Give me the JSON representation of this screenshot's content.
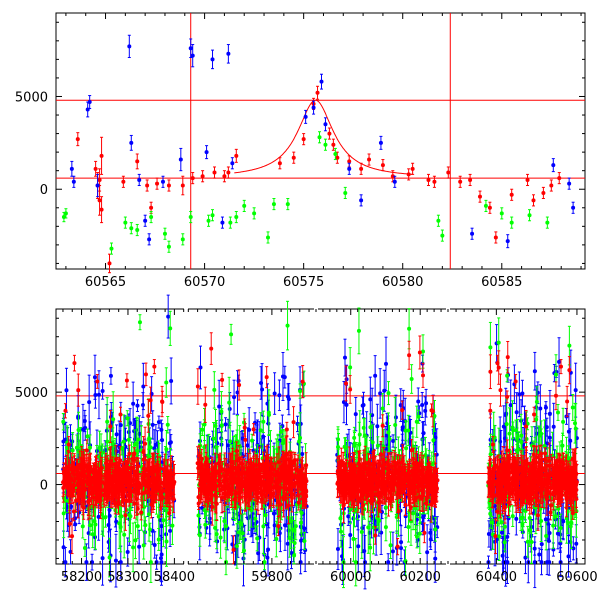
{
  "colors": {
    "red": "#ff0000",
    "green": "#00ff00",
    "blue": "#0000ff",
    "model": "#ff0000",
    "reference_lines": "#ff0000",
    "axes": "#000000"
  },
  "chart_data": [
    {
      "type": "scatter",
      "panel": "top",
      "title": "",
      "xlabel": "",
      "ylabel": "",
      "xlim": [
        60562.5,
        60589.2
      ],
      "ylim": [
        -4300,
        9500
      ],
      "x_ticks": [
        60565,
        60570,
        60575,
        60580,
        60585
      ],
      "x_tick_labels": [
        "60565",
        "60570",
        "60575",
        "60580",
        "60585"
      ],
      "y_ticks": [
        0,
        5000
      ],
      "y_tick_labels": [
        "0",
        "5000"
      ],
      "grid": false,
      "hlines": [
        600,
        4800
      ],
      "vlines": [
        60569.3,
        60582.4
      ],
      "error_bars": true,
      "model_curve": {
        "shape": "peak",
        "baseline": 600,
        "peak_x": 60575.6,
        "peak_y": 4800,
        "x_range": [
          60571.5,
          60580.5
        ]
      },
      "series": [
        {
          "color": "red",
          "points": [
            [
              60563.6,
              2700,
              350
            ],
            [
              60564.5,
              1100,
              400
            ],
            [
              60564.6,
              200,
              700
            ],
            [
              60564.7,
              -600,
              800
            ],
            [
              60564.7,
              500,
              600
            ],
            [
              60564.8,
              -1100,
              700
            ],
            [
              60564.8,
              1800,
              1000
            ],
            [
              60565.2,
              -4000,
              500
            ],
            [
              60565.9,
              400,
              300
            ],
            [
              60566.6,
              1500,
              400
            ],
            [
              60567.1,
              200,
              300
            ],
            [
              60567.3,
              -1000,
              300
            ],
            [
              60567.6,
              300,
              300
            ],
            [
              60568.2,
              200,
              300
            ],
            [
              60568.9,
              200,
              500
            ],
            [
              60569.4,
              600,
              300
            ],
            [
              60569.9,
              700,
              300
            ],
            [
              60570.5,
              900,
              300
            ],
            [
              60571.0,
              700,
              300
            ],
            [
              60571.2,
              900,
              300
            ],
            [
              60571.6,
              1800,
              350
            ],
            [
              60573.8,
              1400,
              300
            ],
            [
              60574.5,
              1700,
              300
            ],
            [
              60575.0,
              2700,
              300
            ],
            [
              60575.5,
              4600,
              300
            ],
            [
              60575.7,
              5200,
              350
            ],
            [
              60576.3,
              3000,
              300
            ],
            [
              60576.5,
              2400,
              300
            ],
            [
              60576.7,
              1700,
              300
            ],
            [
              60577.3,
              1500,
              300
            ],
            [
              60577.9,
              1100,
              300
            ],
            [
              60578.3,
              1600,
              300
            ],
            [
              60579.0,
              1300,
              300
            ],
            [
              60579.5,
              700,
              300
            ],
            [
              60580.3,
              800,
              300
            ],
            [
              60580.5,
              1100,
              300
            ],
            [
              60581.3,
              500,
              300
            ],
            [
              60581.6,
              400,
              300
            ],
            [
              60582.3,
              900,
              300
            ],
            [
              60582.9,
              400,
              300
            ],
            [
              60583.4,
              500,
              300
            ],
            [
              60583.9,
              -400,
              300
            ],
            [
              60584.4,
              -1000,
              300
            ],
            [
              60584.7,
              -2600,
              300
            ],
            [
              60585.5,
              -300,
              300
            ],
            [
              60586.3,
              500,
              300
            ],
            [
              60586.6,
              -600,
              300
            ],
            [
              60587.1,
              -200,
              300
            ],
            [
              60587.5,
              200,
              300
            ],
            [
              60587.9,
              600,
              300
            ]
          ]
        },
        {
          "color": "green",
          "points": [
            [
              60562.9,
              -1500,
              250
            ],
            [
              60563.0,
              -1300,
              250
            ],
            [
              60565.3,
              -3200,
              300
            ],
            [
              60566.0,
              -1800,
              300
            ],
            [
              60566.3,
              -2100,
              300
            ],
            [
              60566.6,
              -2200,
              300
            ],
            [
              60567.3,
              -1500,
              300
            ],
            [
              60568.0,
              -2400,
              300
            ],
            [
              60568.2,
              -3100,
              300
            ],
            [
              60568.9,
              -2700,
              300
            ],
            [
              60569.3,
              -1500,
              300
            ],
            [
              60570.2,
              -1700,
              300
            ],
            [
              60570.4,
              -1400,
              300
            ],
            [
              60571.3,
              -1800,
              300
            ],
            [
              60571.6,
              -1500,
              300
            ],
            [
              60572.0,
              -900,
              300
            ],
            [
              60572.5,
              -1300,
              300
            ],
            [
              60573.2,
              -2600,
              300
            ],
            [
              60573.5,
              -800,
              300
            ],
            [
              60574.2,
              -800,
              300
            ],
            [
              60575.8,
              2800,
              300
            ],
            [
              60576.1,
              2400,
              300
            ],
            [
              60576.6,
              1900,
              300
            ],
            [
              60577.1,
              -200,
              300
            ],
            [
              60581.8,
              -1700,
              300
            ],
            [
              60582.0,
              -2500,
              300
            ],
            [
              60584.2,
              -900,
              300
            ],
            [
              60585.0,
              -1300,
              300
            ],
            [
              60585.5,
              -1800,
              300
            ],
            [
              60586.4,
              -1400,
              300
            ],
            [
              60587.3,
              -1800,
              300
            ]
          ]
        },
        {
          "color": "blue",
          "points": [
            [
              60563.3,
              1100,
              400
            ],
            [
              60563.4,
              400,
              300
            ],
            [
              60564.1,
              4300,
              400
            ],
            [
              60564.2,
              4700,
              350
            ],
            [
              60564.6,
              200,
              600
            ],
            [
              60566.2,
              7700,
              600
            ],
            [
              60566.3,
              2500,
              400
            ],
            [
              60566.7,
              500,
              300
            ],
            [
              60567.0,
              -1700,
              300
            ],
            [
              60567.2,
              -2700,
              300
            ],
            [
              60567.9,
              400,
              300
            ],
            [
              60568.8,
              1600,
              600
            ],
            [
              60569.3,
              7600,
              500
            ],
            [
              60569.4,
              7200,
              600
            ],
            [
              60570.1,
              2000,
              350
            ],
            [
              60570.4,
              7000,
              500
            ],
            [
              60570.9,
              -1800,
              300
            ],
            [
              60571.2,
              7300,
              500
            ],
            [
              60571.4,
              1400,
              300
            ],
            [
              60575.1,
              3900,
              350
            ],
            [
              60575.5,
              4400,
              350
            ],
            [
              60575.9,
              5800,
              400
            ],
            [
              60576.1,
              3500,
              350
            ],
            [
              60577.3,
              1100,
              300
            ],
            [
              60577.9,
              -600,
              300
            ],
            [
              60578.9,
              2500,
              350
            ],
            [
              60579.6,
              400,
              300
            ],
            [
              60583.5,
              -2400,
              300
            ],
            [
              60585.3,
              -2800,
              350
            ],
            [
              60587.6,
              1300,
              350
            ],
            [
              60588.4,
              300,
              300
            ],
            [
              60588.6,
              -1000,
              300
            ]
          ]
        }
      ]
    },
    {
      "type": "scatter",
      "panel": "bottom",
      "title": "",
      "xlabel": "",
      "ylabel": "",
      "broken_x_axis": true,
      "segments": [
        {
          "xlim": [
            58145,
            58425
          ],
          "x_ticks": [
            58200,
            58300,
            58400
          ],
          "x_tick_labels": [
            "58200",
            "58300",
            "58400"
          ]
        },
        {
          "xlim": [
            59615,
            59895
          ],
          "x_ticks": [
            59800
          ],
          "x_tick_labels": [
            "59800"
          ]
        },
        {
          "xlim": [
            59900,
            60280
          ],
          "x_ticks": [
            60000,
            60200
          ],
          "x_tick_labels": [
            "60000",
            "60200"
          ]
        },
        {
          "xlim": [
            60280,
            60620
          ],
          "x_ticks": [
            60400,
            60600
          ],
          "x_tick_labels": [
            "60400",
            "60600"
          ]
        }
      ],
      "observing_seasons": [
        [
          58160,
          58400
        ],
        [
          59640,
          59875
        ],
        [
          59960,
          60250
        ],
        [
          60380,
          60600
        ]
      ],
      "ylim": [
        -4300,
        9500
      ],
      "y_ticks": [
        0,
        5000
      ],
      "y_tick_labels": [
        "0",
        "5000"
      ],
      "grid": false,
      "hlines": [
        600,
        4800
      ],
      "error_bars": true,
      "series": [
        {
          "color": "red",
          "typical_value": 200,
          "typical_spread": 900,
          "outliers_low": -4000,
          "outliers_high": 7500
        },
        {
          "color": "green",
          "typical_value": 200,
          "typical_spread": 1800,
          "outliers_low": -4000,
          "outliers_high": 9000
        },
        {
          "color": "blue",
          "typical_value": 200,
          "typical_spread": 2600,
          "outliers_low": -4000,
          "outliers_high": 9500
        }
      ]
    }
  ]
}
